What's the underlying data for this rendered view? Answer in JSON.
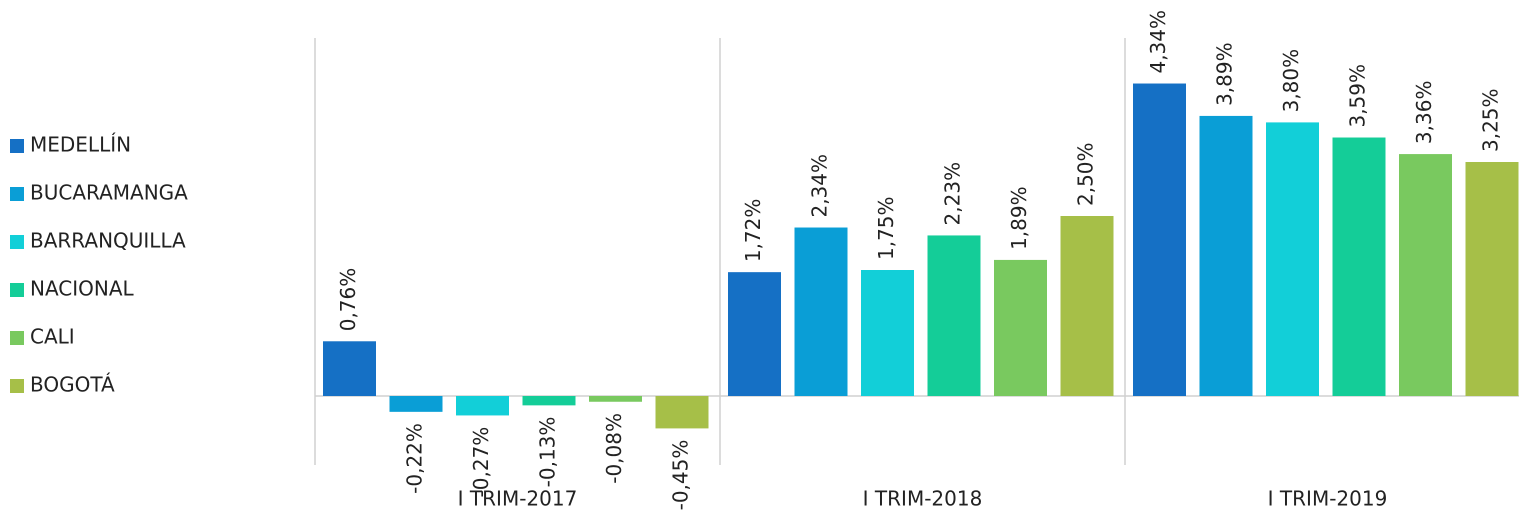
{
  "chart_data": {
    "type": "bar",
    "categories": [
      "I TRIM-2017",
      "I TRIM-2018",
      "I TRIM-2019"
    ],
    "series": [
      {
        "name": "MEDELLÍN",
        "color": "#1570c5",
        "values": [
          0.76,
          1.72,
          4.34
        ],
        "value_labels": [
          "0,76%",
          "1,72%",
          "4,34%"
        ]
      },
      {
        "name": "BUCARAMANGA",
        "color": "#0a9ed6",
        "values": [
          -0.22,
          2.34,
          3.89
        ],
        "value_labels": [
          "-0,22%",
          "2,34%",
          "3,89%"
        ]
      },
      {
        "name": "BARRANQUILLA",
        "color": "#12cfd8",
        "values": [
          -0.27,
          1.75,
          3.8
        ],
        "value_labels": [
          "-0,27%",
          "1,75%",
          "3,80%"
        ]
      },
      {
        "name": "NACIONAL",
        "color": "#14cd98",
        "values": [
          -0.13,
          2.23,
          3.59
        ],
        "value_labels": [
          "-0,13%",
          "2,23%",
          "3,59%"
        ]
      },
      {
        "name": "CALI",
        "color": "#79c95f",
        "values": [
          -0.08,
          1.89,
          3.36
        ],
        "value_labels": [
          "-0,08%",
          "1,89%",
          "3,36%"
        ]
      },
      {
        "name": "BOGOTÁ",
        "color": "#a6bf48",
        "values": [
          -0.45,
          2.5,
          3.25
        ],
        "value_labels": [
          "-0,45%",
          "2,50%",
          "3,25%"
        ]
      }
    ],
    "legend": "left"
  }
}
